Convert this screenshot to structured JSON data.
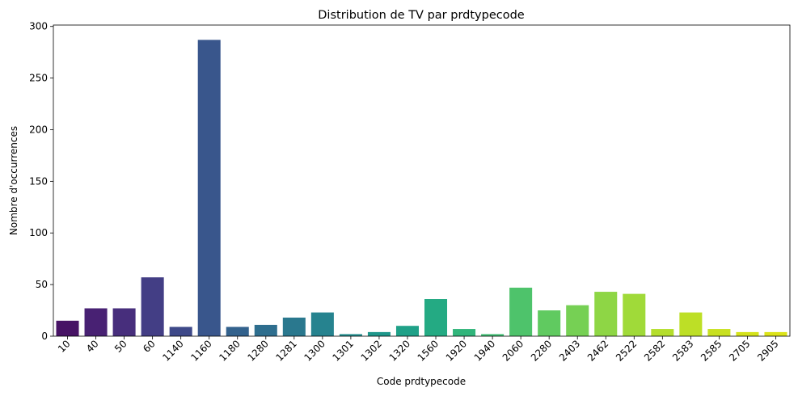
{
  "chart_data": {
    "type": "bar",
    "title": "Distribution de TV par prdtypecode",
    "xlabel": "Code prdtypecode",
    "ylabel": "Nombre d'occurrences",
    "categories": [
      "10",
      "40",
      "50",
      "60",
      "1140",
      "1160",
      "1180",
      "1280",
      "1281",
      "1300",
      "1301",
      "1302",
      "1320",
      "1560",
      "1920",
      "1940",
      "2060",
      "2280",
      "2403",
      "2462",
      "2522",
      "2582",
      "2583",
      "2585",
      "2705",
      "2905"
    ],
    "values": [
      15,
      27,
      27,
      57,
      9,
      287,
      9,
      11,
      18,
      23,
      2,
      4,
      10,
      36,
      7,
      2,
      47,
      25,
      30,
      43,
      41,
      7,
      23,
      7,
      4,
      4
    ],
    "colors": [
      "#471365",
      "#482173",
      "#472e7c",
      "#433e85",
      "#3e4989",
      "#39568c",
      "#33628d",
      "#2e6e8e",
      "#2a788e",
      "#26838f",
      "#228d8d",
      "#1f978b",
      "#1fa188",
      "#24aa83",
      "#31b57b",
      "#40bd72",
      "#4ec36b",
      "#60ca60",
      "#76d054",
      "#8ed645",
      "#a0da39",
      "#b4de2c",
      "#bddf26",
      "#c8e020",
      "#d4e21a",
      "#dce319"
    ],
    "yticks": [
      0,
      50,
      100,
      150,
      200,
      250,
      300
    ],
    "ylim": [
      0,
      301.35
    ],
    "grid": false,
    "legend": "none"
  }
}
